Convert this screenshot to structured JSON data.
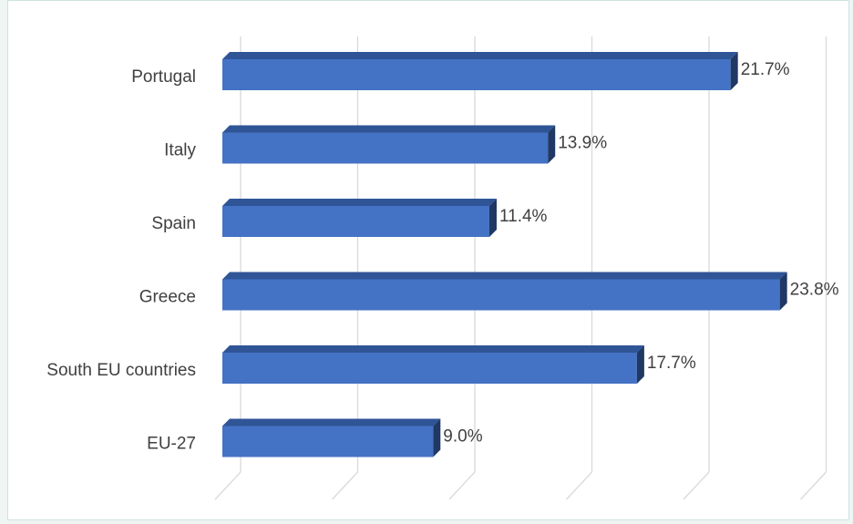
{
  "chart_data": {
    "type": "bar",
    "orientation": "horizontal",
    "style": "3d",
    "categories": [
      "Portugal",
      "Italy",
      "Spain",
      "Greece",
      "South EU countries",
      "EU-27"
    ],
    "values": [
      21.7,
      13.9,
      11.4,
      23.8,
      17.7,
      9.0
    ],
    "data_labels": [
      "21.7%",
      "13.9%",
      "11.4%",
      "23.8%",
      "17.7%",
      "9.0%"
    ],
    "title": "",
    "xlabel": "",
    "ylabel": "",
    "xlim": [
      0,
      25
    ],
    "grid": true,
    "legend": "none",
    "bar_color": "#4472C4",
    "bar_top_color": "#2F5597",
    "bar_side_color": "#1F3864"
  }
}
